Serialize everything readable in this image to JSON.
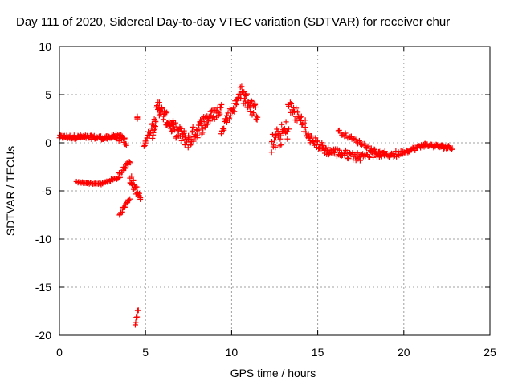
{
  "chart_data": {
    "type": "scatter",
    "title": "Day 111 of 2020, Sidereal Day-to-day VTEC variation (SDTVAR) for receiver chur",
    "xlabel": "GPS time / hours",
    "ylabel": "SDTVAR / TECUs",
    "xlim": [
      0,
      25
    ],
    "ylim": [
      -20,
      10
    ],
    "xticks": [
      0,
      5,
      10,
      15,
      20,
      25
    ],
    "yticks": [
      -20,
      -15,
      -10,
      -5,
      0,
      5,
      10
    ],
    "grid": true,
    "marker": "+",
    "color": "#ff0000",
    "segments": [
      {
        "x0": 0.0,
        "x1": 1.5,
        "y0": 0.6,
        "y1": 0.6,
        "spread": 0.4,
        "n": 50
      },
      {
        "x0": 1.5,
        "x1": 3.0,
        "y0": 0.6,
        "y1": 0.5,
        "spread": 0.4,
        "n": 45
      },
      {
        "x0": 3.0,
        "x1": 3.8,
        "y0": 0.8,
        "y1": 0.3,
        "spread": 0.7,
        "n": 25
      },
      {
        "x0": 3.8,
        "x1": 3.9,
        "y0": -0.2,
        "y1": -0.2,
        "spread": 0.2,
        "n": 4
      },
      {
        "x0": 1.0,
        "x1": 2.5,
        "y0": -4.1,
        "y1": -4.3,
        "spread": 0.15,
        "n": 25
      },
      {
        "x0": 2.5,
        "x1": 3.5,
        "y0": -4.2,
        "y1": -3.6,
        "spread": 0.2,
        "n": 18
      },
      {
        "x0": 3.5,
        "x1": 4.1,
        "y0": -3.2,
        "y1": -1.9,
        "spread": 0.4,
        "n": 15
      },
      {
        "x0": 3.5,
        "x1": 4.1,
        "y0": -7.4,
        "y1": -5.8,
        "spread": 0.4,
        "n": 14
      },
      {
        "x0": 4.1,
        "x1": 4.7,
        "y0": -3.6,
        "y1": -5.8,
        "spread": 1.0,
        "n": 22
      },
      {
        "x0": 4.5,
        "x1": 4.5,
        "y0": 2.6,
        "y1": 2.6,
        "spread": 0.3,
        "n": 3
      },
      {
        "x0": 4.4,
        "x1": 4.6,
        "y0": -19.0,
        "y1": -17.2,
        "spread": 0.4,
        "n": 6
      },
      {
        "x0": 4.9,
        "x1": 5.4,
        "y0": -0.2,
        "y1": 1.8,
        "spread": 0.8,
        "n": 15
      },
      {
        "x0": 5.4,
        "x1": 5.8,
        "y0": 1.2,
        "y1": 4.2,
        "spread": 1.6,
        "n": 20
      },
      {
        "x0": 5.8,
        "x1": 6.6,
        "y0": 3.5,
        "y1": 1.5,
        "spread": 1.4,
        "n": 30
      },
      {
        "x0": 6.6,
        "x1": 7.6,
        "y0": 1.5,
        "y1": 0.0,
        "spread": 1.6,
        "n": 35
      },
      {
        "x0": 7.6,
        "x1": 8.6,
        "y0": 0.5,
        "y1": 2.5,
        "spread": 1.8,
        "n": 35
      },
      {
        "x0": 8.6,
        "x1": 9.4,
        "y0": 2.5,
        "y1": 3.5,
        "spread": 1.2,
        "n": 25
      },
      {
        "x0": 9.4,
        "x1": 10.4,
        "y0": 1.5,
        "y1": 4.5,
        "spread": 1.2,
        "n": 30
      },
      {
        "x0": 10.4,
        "x1": 11.5,
        "y0": 5.5,
        "y1": 3.0,
        "spread": 1.6,
        "n": 40
      },
      {
        "x0": 12.3,
        "x1": 13.3,
        "y0": -0.2,
        "y1": 1.5,
        "spread": 2.2,
        "n": 30
      },
      {
        "x0": 13.3,
        "x1": 14.3,
        "y0": 3.8,
        "y1": 1.8,
        "spread": 1.6,
        "n": 25
      },
      {
        "x0": 14.3,
        "x1": 15.5,
        "y0": 0.8,
        "y1": -0.8,
        "spread": 1.0,
        "n": 35
      },
      {
        "x0": 15.5,
        "x1": 17.5,
        "y0": -0.8,
        "y1": -1.5,
        "spread": 0.9,
        "n": 45
      },
      {
        "x0": 16.2,
        "x1": 18.8,
        "y0": 1.2,
        "y1": -1.3,
        "spread": 0.4,
        "n": 40
      },
      {
        "x0": 17.5,
        "x1": 19.7,
        "y0": -1.2,
        "y1": -1.2,
        "spread": 0.7,
        "n": 40
      },
      {
        "x0": 19.7,
        "x1": 21.0,
        "y0": -1.1,
        "y1": -0.4,
        "spread": 0.4,
        "n": 30
      },
      {
        "x0": 21.0,
        "x1": 22.8,
        "y0": -0.2,
        "y1": -0.5,
        "spread": 0.4,
        "n": 45
      }
    ]
  }
}
